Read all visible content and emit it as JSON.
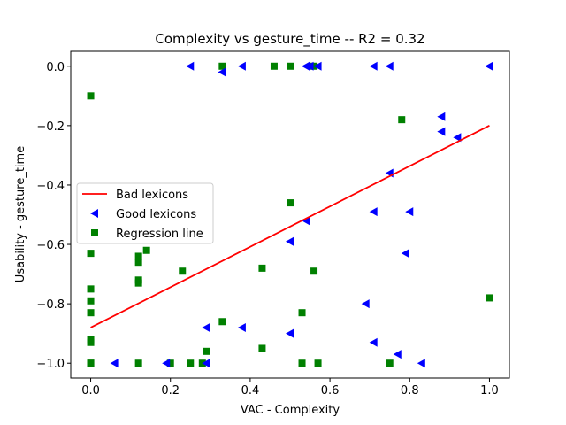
{
  "chart_data": {
    "type": "scatter",
    "title": "Complexity  vs  gesture_time -- R2 = 0.32",
    "xlabel": "VAC - Complexity",
    "ylabel": "Usability - gesture_time",
    "xlim": [
      -0.05,
      1.05
    ],
    "ylim": [
      -1.05,
      0.05
    ],
    "xticks": [
      0.0,
      0.2,
      0.4,
      0.6,
      0.8,
      1.0
    ],
    "xtick_labels": [
      "0.0",
      "0.2",
      "0.4",
      "0.6",
      "0.8",
      "1.0"
    ],
    "yticks": [
      0.0,
      -0.2,
      -0.4,
      -0.6,
      -0.8,
      -1.0
    ],
    "ytick_labels": [
      "0.0",
      "−0.2",
      "−0.4",
      "−0.6",
      "−0.8",
      "−1.0"
    ],
    "grid": false,
    "legend_position": "center-left",
    "series": [
      {
        "name": "Bad lexicons",
        "kind": "line",
        "color": "#ff0000",
        "x": [
          0.0,
          1.0
        ],
        "y": [
          -0.88,
          -0.2
        ]
      },
      {
        "name": "Good lexicons",
        "kind": "scatter",
        "marker": "triangle-left",
        "color": "#0000ff",
        "x": [
          0.25,
          0.33,
          0.38,
          0.54,
          0.55,
          0.57,
          0.71,
          0.75,
          1.0,
          0.88,
          0.88,
          0.92,
          0.75,
          0.71,
          0.8,
          0.54,
          0.5,
          0.79,
          0.69,
          0.29,
          0.38,
          0.5,
          0.71,
          0.77,
          0.06,
          0.19,
          0.29,
          0.83,
          1.0
        ],
        "y": [
          0.0,
          -0.02,
          0.0,
          0.0,
          0.0,
          0.0,
          0.0,
          0.0,
          0.0,
          -0.17,
          -0.22,
          -0.24,
          -0.36,
          -0.49,
          -0.49,
          -0.52,
          -0.59,
          -0.63,
          -0.8,
          -0.88,
          -0.88,
          -0.9,
          -0.93,
          -0.97,
          -1.0,
          -1.0,
          -1.0,
          -1.0,
          0.0
        ]
      },
      {
        "name": "Regression line",
        "kind": "scatter",
        "marker": "square",
        "color": "#008000",
        "x": [
          0.0,
          0.33,
          0.46,
          0.5,
          0.56,
          0.0,
          0.78,
          0.5,
          0.14,
          0.12,
          0.12,
          0.0,
          0.23,
          0.43,
          0.56,
          0.12,
          0.12,
          0.0,
          0.0,
          0.0,
          1.0,
          0.53,
          0.33,
          0.0,
          0.0,
          0.29,
          0.43,
          0.0,
          0.12,
          0.2,
          0.25,
          0.28,
          0.53,
          0.57,
          0.75
        ],
        "y": [
          -0.1,
          0.0,
          0.0,
          0.0,
          0.0,
          -0.63,
          -0.18,
          -0.46,
          -0.62,
          -0.64,
          -0.66,
          -0.75,
          -0.69,
          -0.68,
          -0.69,
          -0.72,
          -0.73,
          -0.79,
          -0.83,
          -0.92,
          -0.78,
          -0.83,
          -0.86,
          -0.93,
          -1.0,
          -0.96,
          -0.95,
          -1.0,
          -1.0,
          -1.0,
          -1.0,
          -1.0,
          -1.0,
          -1.0,
          -1.0
        ]
      }
    ]
  }
}
